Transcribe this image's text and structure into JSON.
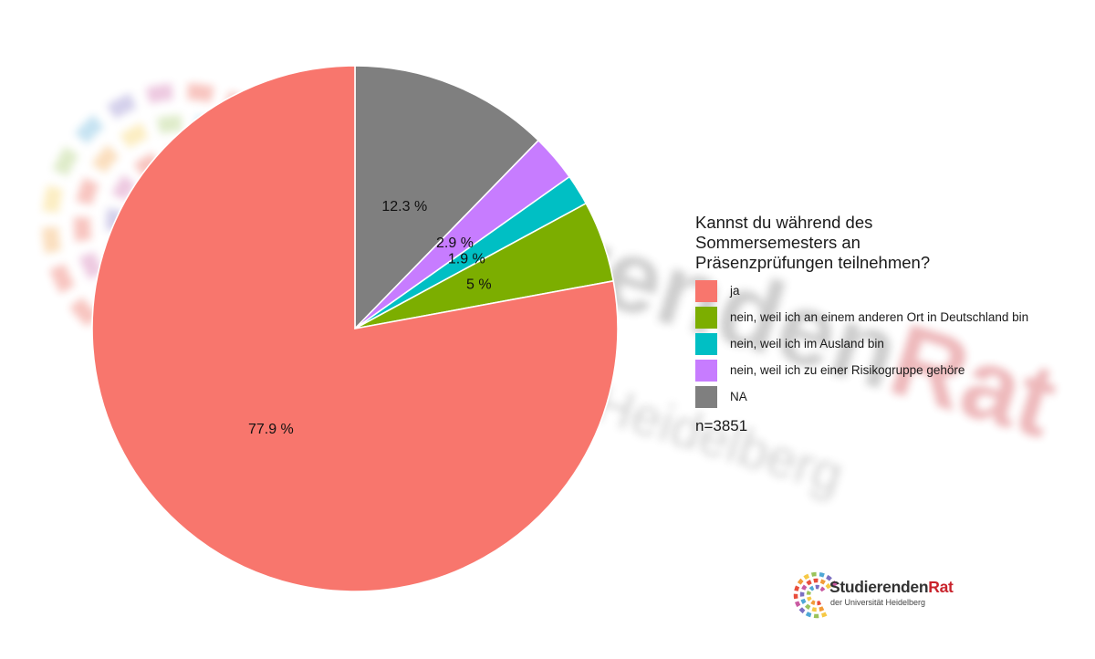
{
  "chart_data": {
    "type": "pie",
    "legend_title": "Kannst du während des Sommersemesters an Präsenzprüfungen teilnehmen?",
    "legend_position": "right",
    "n_label": "n=3851",
    "slices": [
      {
        "label": "ja",
        "value": 77.9,
        "value_label": "77.9 %",
        "color": "#F8766D"
      },
      {
        "label": "nein, weil ich an einem anderen Ort in Deutschland bin",
        "value": 5.0,
        "value_label": "5 %",
        "color": "#7CAE00"
      },
      {
        "label": "nein, weil ich im Ausland bin",
        "value": 1.9,
        "value_label": "1.9 %",
        "color": "#00BFC4"
      },
      {
        "label": "nein, weil ich zu einer Risikogruppe gehöre",
        "value": 2.9,
        "value_label": "2.9 %",
        "color": "#C77CFF"
      },
      {
        "label": "NA",
        "value": 12.3,
        "value_label": "12.3 %",
        "color": "#7F7F7F"
      }
    ]
  },
  "logo": {
    "name_part1": "Studierenden",
    "name_part2": "Rat",
    "subtitle": "der Universität Heidelberg",
    "color_part1": "#333333",
    "color_part2": "#C9232C"
  },
  "watermark": {
    "line1_part1": "Studierenden",
    "line1_part2": "Rat",
    "line2": "der Universität Heidelberg"
  }
}
